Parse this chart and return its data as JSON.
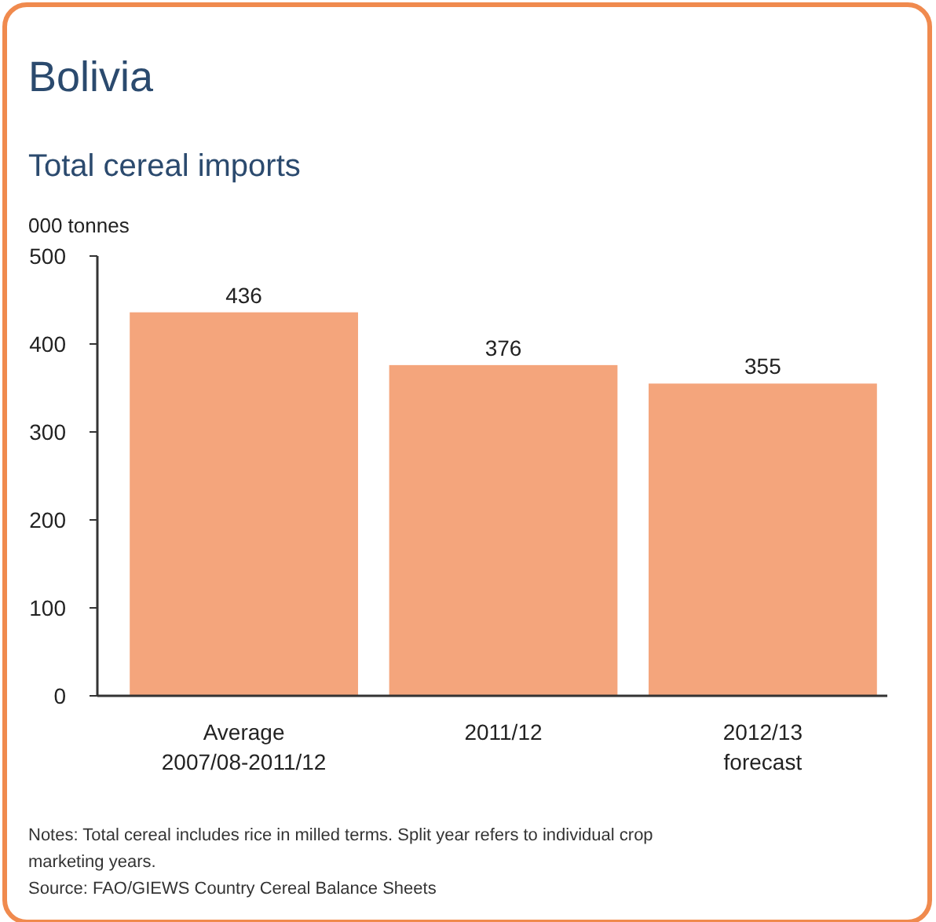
{
  "chart_data": {
    "type": "bar",
    "title": "Bolivia",
    "subtitle": "Total cereal imports",
    "ylabel": "000 tonnes",
    "categories": [
      "Average\n2007/08-2011/12",
      "2011/12",
      "2012/13\nforecast"
    ],
    "values": [
      436,
      376,
      355
    ],
    "color": "#f4a57c",
    "ylim": [
      0,
      500
    ],
    "yticks": [
      0,
      100,
      200,
      300,
      400,
      500
    ],
    "grid": false,
    "data_labels": true,
    "annotations": [
      "Notes: Total cereal includes rice in milled terms. Split year refers to individual crop marketing years.",
      "Source: FAO/GIEWS Country Cereal Balance Sheets"
    ]
  }
}
